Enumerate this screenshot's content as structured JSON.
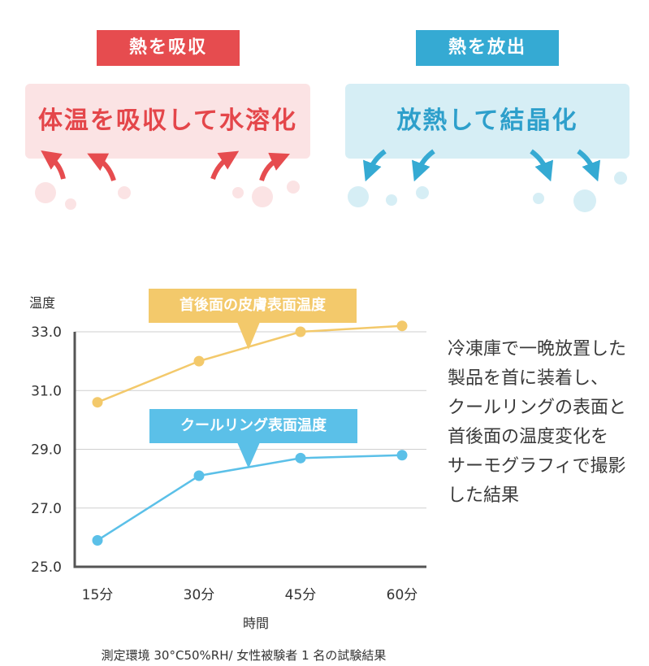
{
  "top": {
    "absorb_tag": "熱を吸収",
    "absorb_text": "体温を吸収して水溶化",
    "release_tag": "熱を放出",
    "release_text": "放熱して結晶化"
  },
  "colors": {
    "red": "#e64c4f",
    "red_light": "#fbe3e4",
    "blue": "#35aad3",
    "blue_light": "#d6eef5",
    "yellow_series": "#f3c96b",
    "blue_series": "#5bc0e8",
    "axis": "#555555"
  },
  "chart_data": {
    "type": "line",
    "title": "",
    "xlabel": "時間",
    "ylabel": "温度",
    "categories": [
      "15分",
      "30分",
      "45分",
      "60分"
    ],
    "ylim": [
      25.0,
      33.0
    ],
    "yticks": [
      "33.0",
      "31.0",
      "29.0",
      "27.0",
      "25.0"
    ],
    "grid": true,
    "series": [
      {
        "name": "首後面の皮膚表面温度",
        "values": [
          30.6,
          32.0,
          33.0,
          33.2
        ]
      },
      {
        "name": "クールリング表面温度",
        "values": [
          25.9,
          28.1,
          28.7,
          28.8
        ]
      }
    ]
  },
  "notes": [
    "冷凍庫で一晩放置した",
    "製品を首に装着し、",
    "クールリングの表面と",
    "首後面の温度変化を",
    "サーモグラフィで撮影",
    "した結果"
  ],
  "footnote": "測定環境 30°C50%RH/ 女性被験者 1 名の試験結果"
}
